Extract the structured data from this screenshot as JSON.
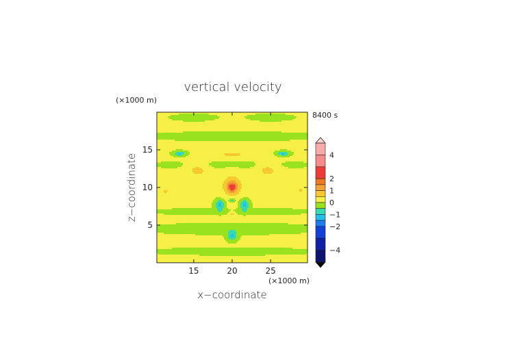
{
  "chart_data": {
    "type": "heatmap",
    "title": "vertical velocity",
    "time_label": "8400 s",
    "xlabel": "x−coordinate",
    "ylabel": "z−coordinate",
    "x_unit": "(×1000 m)",
    "y_unit": "(×1000 m)",
    "xlim": [
      10.2,
      29.8
    ],
    "ylim": [
      0,
      20
    ],
    "x_ticks": [
      {
        "value": 15,
        "label": "15"
      },
      {
        "value": 20,
        "label": "20"
      },
      {
        "value": 25,
        "label": "25"
      }
    ],
    "y_ticks": [
      {
        "value": 5,
        "label": "5"
      },
      {
        "value": 10,
        "label": "10"
      },
      {
        "value": 15,
        "label": "15"
      }
    ],
    "colorbar": {
      "range": [
        -5,
        5
      ],
      "ticks": [
        {
          "value": 4,
          "label": "4"
        },
        {
          "value": 2,
          "label": "2"
        },
        {
          "value": 1,
          "label": "1"
        },
        {
          "value": 0,
          "label": "0"
        },
        {
          "value": -1,
          "label": "−1"
        },
        {
          "value": -2,
          "label": "−2"
        },
        {
          "value": -4,
          "label": "−4"
        }
      ],
      "levels": [
        {
          "from": 4,
          "to": 5,
          "color": "#f7aaaa"
        },
        {
          "from": 3,
          "to": 4,
          "color": "#f48a8a"
        },
        {
          "from": 2,
          "to": 3,
          "color": "#ee3a3a"
        },
        {
          "from": 1.5,
          "to": 2,
          "color": "#f07a24"
        },
        {
          "from": 1,
          "to": 1.5,
          "color": "#f4a238"
        },
        {
          "from": 0.5,
          "to": 1,
          "color": "#f7c832"
        },
        {
          "from": 0,
          "to": 0.5,
          "color": "#f6ef46"
        },
        {
          "from": -0.5,
          "to": 0,
          "color": "#9ae21e"
        },
        {
          "from": -1,
          "to": -0.5,
          "color": "#36d9b0"
        },
        {
          "from": -1.5,
          "to": -1,
          "color": "#22bfe8"
        },
        {
          "from": -2,
          "to": -1.5,
          "color": "#1f7cf0"
        },
        {
          "from": -3,
          "to": -2,
          "color": "#1340d8"
        },
        {
          "from": -4,
          "to": -3,
          "color": "#1020a8"
        },
        {
          "from": -5,
          "to": -4,
          "color": "#0c1470"
        }
      ]
    },
    "field": {
      "background": 0.05,
      "features": [
        {
          "x": 20.0,
          "z": 10.3,
          "rx": 1.9,
          "rz": 2.0,
          "amp": 0.45
        },
        {
          "x": 20.0,
          "z": 10.1,
          "rx": 0.9,
          "rz": 1.0,
          "amp": 0.9
        },
        {
          "x": 20.0,
          "z": 10.0,
          "rx": 0.45,
          "rz": 0.5,
          "amp": 1.5
        },
        {
          "x": 15.5,
          "z": 12.4,
          "rx": 1.5,
          "rz": 1.2,
          "amp": 0.6
        },
        {
          "x": 24.6,
          "z": 12.4,
          "rx": 1.5,
          "rz": 1.2,
          "amp": 0.6
        },
        {
          "x": 20.0,
          "z": 14.4,
          "rx": 2.3,
          "rz": 0.5,
          "amp": 0.55
        },
        {
          "x": 11.3,
          "z": 9.5,
          "rx": 0.8,
          "rz": 0.6,
          "amp": 0.5
        },
        {
          "x": 28.9,
          "z": 9.6,
          "rx": 0.8,
          "rz": 0.6,
          "amp": 0.5
        },
        {
          "x": 20.0,
          "z": 6.5,
          "rx": 0.5,
          "rz": 0.5,
          "amp": 0.6
        },
        {
          "x": 13.2,
          "z": 14.5,
          "rx": 0.8,
          "rz": 0.3,
          "amp": -1.1
        },
        {
          "x": 26.6,
          "z": 14.5,
          "rx": 0.8,
          "rz": 0.3,
          "amp": -1.1
        },
        {
          "x": 18.4,
          "z": 7.7,
          "rx": 0.6,
          "rz": 0.7,
          "amp": -1.3
        },
        {
          "x": 21.6,
          "z": 7.7,
          "rx": 0.6,
          "rz": 0.7,
          "amp": -1.3
        },
        {
          "x": 20.0,
          "z": 8.3,
          "rx": 0.4,
          "rz": 0.3,
          "amp": -0.8
        },
        {
          "x": 20.0,
          "z": 3.6,
          "rx": 0.6,
          "rz": 0.6,
          "amp": -1.2
        },
        {
          "x": 20.0,
          "z": 6.8,
          "rx": 9.0,
          "rz": 0.35,
          "amp": -0.35
        },
        {
          "x": 20.0,
          "z": 4.5,
          "rx": 9.0,
          "rz": 0.6,
          "amp": -0.35
        },
        {
          "x": 20.0,
          "z": 1.5,
          "rx": 9.0,
          "rz": 0.4,
          "amp": -0.3
        },
        {
          "x": 20.0,
          "z": 16.8,
          "rx": 9.0,
          "rz": 0.5,
          "amp": -0.3
        },
        {
          "x": 20.0,
          "z": 13.0,
          "rx": 9.0,
          "rz": 0.5,
          "amp": -0.25
        },
        {
          "x": 15.0,
          "z": 19.3,
          "rx": 2.5,
          "rz": 0.4,
          "amp": -0.3
        },
        {
          "x": 25.0,
          "z": 19.3,
          "rx": 2.5,
          "rz": 0.4,
          "amp": -0.3
        }
      ]
    }
  }
}
